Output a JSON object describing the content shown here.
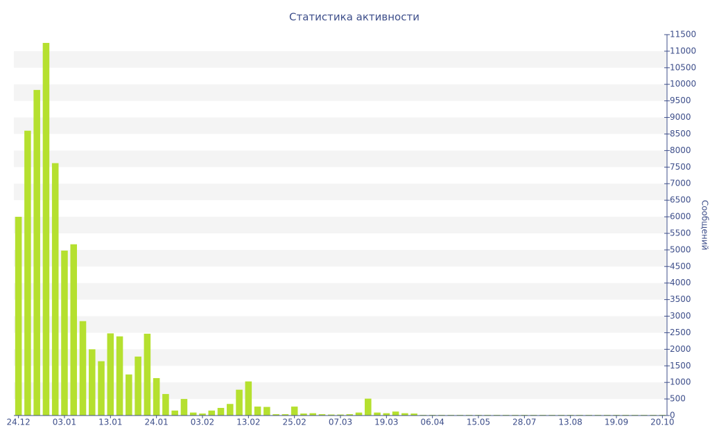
{
  "chart_data": {
    "type": "bar",
    "title": "Статистика активности",
    "y_axis_label": "Сообщений",
    "categories": [
      "24.12",
      null,
      null,
      null,
      null,
      "03.01",
      null,
      null,
      null,
      null,
      "13.01",
      null,
      null,
      null,
      null,
      "24.01",
      null,
      null,
      null,
      null,
      "03.02",
      null,
      null,
      null,
      null,
      "13.02",
      null,
      null,
      null,
      null,
      "25.02",
      null,
      null,
      null,
      null,
      "07.03",
      null,
      null,
      null,
      null,
      "19.03",
      null,
      null,
      null,
      null,
      "06.04",
      null,
      null,
      null,
      null,
      "15.05",
      null,
      null,
      null,
      null,
      "28.07",
      null,
      null,
      null,
      null,
      "13.08",
      null,
      null,
      null,
      null,
      "19.09",
      null,
      null,
      null,
      null,
      "20.10"
    ],
    "values": [
      6000,
      8600,
      9830,
      11250,
      7620,
      4980,
      5170,
      2850,
      2000,
      1640,
      2480,
      2390,
      1240,
      1780,
      2470,
      1130,
      650,
      150,
      500,
      90,
      60,
      150,
      230,
      350,
      780,
      1030,
      270,
      260,
      40,
      40,
      270,
      60,
      70,
      40,
      30,
      30,
      40,
      90,
      510,
      90,
      70,
      120,
      70,
      60,
      20,
      20,
      20,
      20,
      20,
      20,
      20,
      20,
      20,
      20,
      20,
      20,
      20,
      20,
      20,
      20,
      20,
      20,
      20,
      20,
      20,
      20,
      20,
      20,
      20,
      20,
      20
    ],
    "color": "#b5e02f",
    "ylim": [
      0,
      11500
    ],
    "yticks": [
      0,
      500,
      1000,
      1500,
      2000,
      2500,
      3000,
      3500,
      4000,
      4500,
      5000,
      5500,
      6000,
      6500,
      7000,
      7500,
      8000,
      8500,
      9000,
      9500,
      10000,
      10500,
      11000,
      11500
    ],
    "y_axis_side": "right",
    "grid": "alternating-bands"
  }
}
